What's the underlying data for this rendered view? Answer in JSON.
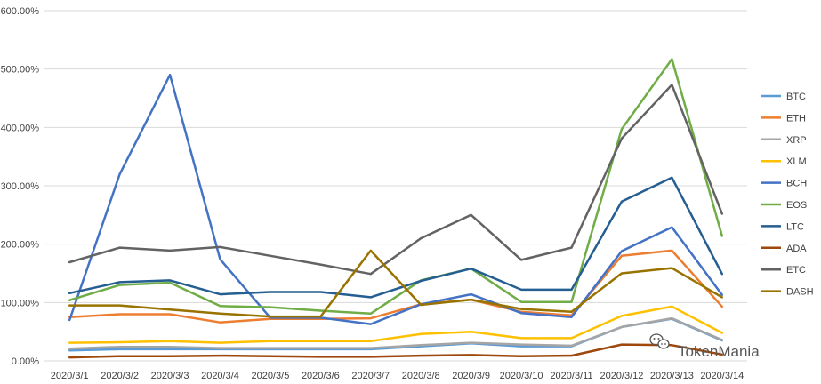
{
  "chart_data": {
    "type": "line",
    "title": "",
    "xlabel": "",
    "ylabel": "",
    "ylim": [
      0,
      600
    ],
    "y_ticks": [
      "0.00%",
      "100.00%",
      "200.00%",
      "300.00%",
      "400.00%",
      "500.00%",
      "600.00%"
    ],
    "y_tick_values": [
      0,
      100,
      200,
      300,
      400,
      500,
      600
    ],
    "grid": "horizontal",
    "legend_position": "right",
    "categories": [
      "2020/3/1",
      "2020/3/2",
      "2020/3/3",
      "2020/3/4",
      "2020/3/5",
      "2020/3/6",
      "2020/3/7",
      "2020/3/8",
      "2020/3/9",
      "2020/3/10",
      "2020/3/11",
      "2020/3/12",
      "2020/3/13",
      "2020/3/14"
    ],
    "series": [
      {
        "name": "BTC",
        "color": "#5b9bd5",
        "values": [
          18,
          20,
          20,
          20,
          20,
          20,
          20,
          25,
          30,
          25,
          25,
          58,
          72,
          35
        ]
      },
      {
        "name": "ETH",
        "color": "#ed7d31",
        "values": [
          75,
          80,
          80,
          66,
          72,
          72,
          73,
          97,
          105,
          84,
          78,
          180,
          189,
          93
        ]
      },
      {
        "name": "XRP",
        "color": "#a5a5a5",
        "values": [
          21,
          24,
          24,
          22,
          22,
          22,
          22,
          27,
          31,
          28,
          26,
          58,
          73,
          36
        ]
      },
      {
        "name": "XLM",
        "color": "#ffc000",
        "values": [
          31,
          32,
          34,
          31,
          34,
          34,
          34,
          46,
          50,
          39,
          39,
          77,
          93,
          48
        ]
      },
      {
        "name": "BCH",
        "color": "#4472c4",
        "values": [
          70,
          320,
          490,
          174,
          74,
          74,
          63,
          97,
          114,
          82,
          75,
          188,
          229,
          113
        ]
      },
      {
        "name": "EOS",
        "color": "#70ad47",
        "values": [
          104,
          130,
          134,
          94,
          92,
          86,
          81,
          138,
          158,
          101,
          101,
          397,
          517,
          214
        ]
      },
      {
        "name": "LTC",
        "color": "#255e91",
        "values": [
          116,
          135,
          138,
          114,
          118,
          118,
          109,
          137,
          158,
          122,
          122,
          273,
          314,
          149
        ]
      },
      {
        "name": "ADA",
        "color": "#9e480e",
        "values": [
          6,
          8,
          8,
          9,
          8,
          7,
          7,
          9,
          10,
          8,
          9,
          28,
          27,
          11
        ]
      },
      {
        "name": "ETC",
        "color": "#636363",
        "values": [
          169,
          194,
          189,
          195,
          180,
          165,
          149,
          210,
          250,
          173,
          194,
          381,
          473,
          252
        ]
      },
      {
        "name": "DASH",
        "color": "#997300",
        "values": [
          95,
          95,
          88,
          81,
          76,
          76,
          189,
          96,
          105,
          89,
          84,
          150,
          159,
          109
        ]
      }
    ]
  },
  "watermark": {
    "text": "TokenMania",
    "icon": "wechat-icon"
  }
}
